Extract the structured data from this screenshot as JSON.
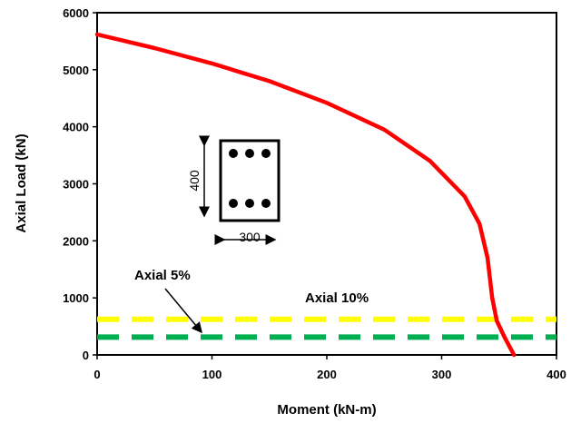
{
  "chart_data": {
    "type": "line",
    "xlabel": "Moment (kN-m)",
    "ylabel": "Axial Load (kN)",
    "xlim": [
      0,
      400
    ],
    "ylim": [
      0,
      6000
    ],
    "x_ticks": [
      "0",
      "100",
      "200",
      "300",
      "400"
    ],
    "y_ticks": [
      "0",
      "1000",
      "2000",
      "3000",
      "4000",
      "5000",
      "6000"
    ],
    "grid": false,
    "series": [
      {
        "color": "#ff0000",
        "style": "solid",
        "points": [
          {
            "x": 0,
            "y": 5620
          },
          {
            "x": 50,
            "y": 5380
          },
          {
            "x": 100,
            "y": 5110
          },
          {
            "x": 150,
            "y": 4800
          },
          {
            "x": 200,
            "y": 4420
          },
          {
            "x": 250,
            "y": 3950
          },
          {
            "x": 290,
            "y": 3400
          },
          {
            "x": 320,
            "y": 2780
          },
          {
            "x": 333,
            "y": 2300
          },
          {
            "x": 340,
            "y": 1700
          },
          {
            "x": 344,
            "y": 1000
          },
          {
            "x": 348,
            "y": 600
          },
          {
            "x": 355,
            "y": 300
          },
          {
            "x": 363,
            "y": 0
          }
        ]
      },
      {
        "color": "#ffff00",
        "style": "dashed",
        "points": [
          {
            "x": 0,
            "y": 625
          },
          {
            "x": 400,
            "y": 625
          }
        ]
      },
      {
        "color": "#00b050",
        "style": "dashed",
        "points": [
          {
            "x": 0,
            "y": 312
          },
          {
            "x": 400,
            "y": 312
          }
        ]
      }
    ],
    "annotations": [
      {
        "text": "Axial 5%",
        "x": 60,
        "y": 1370,
        "arrow_to": {
          "x": 93,
          "y": 330
        }
      },
      {
        "text": "Axial 10%",
        "x": 270,
        "y": 920
      }
    ],
    "section_sketch": {
      "height_label": "400",
      "width_label": "300"
    }
  }
}
